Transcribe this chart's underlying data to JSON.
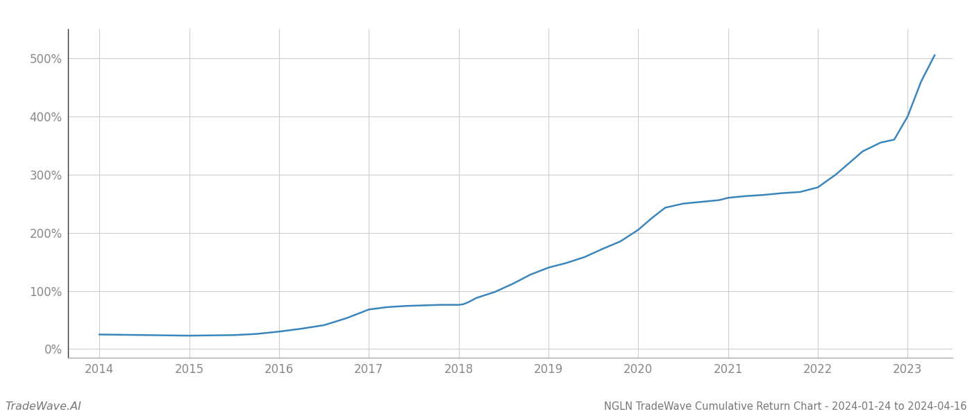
{
  "title": "NGLN TradeWave Cumulative Return Chart - 2024-01-24 to 2024-04-16",
  "watermark": "TradeWave.AI",
  "line_color": "#3a86bc",
  "background_color": "#ffffff",
  "grid_color": "#cccccc",
  "x_values": [
    2014.0,
    2014.25,
    2014.5,
    2014.75,
    2015.0,
    2015.25,
    2015.5,
    2015.75,
    2016.0,
    2016.25,
    2016.5,
    2016.75,
    2017.0,
    2017.1,
    2017.2,
    2017.4,
    2017.6,
    2017.8,
    2017.9,
    2018.0,
    2018.05,
    2018.1,
    2018.2,
    2018.4,
    2018.6,
    2018.8,
    2019.0,
    2019.2,
    2019.4,
    2019.6,
    2019.8,
    2020.0,
    2020.15,
    2020.3,
    2020.5,
    2020.7,
    2020.9,
    2021.0,
    2021.2,
    2021.4,
    2021.6,
    2021.8,
    2022.0,
    2022.2,
    2022.5,
    2022.7,
    2022.85,
    2023.0,
    2023.15,
    2023.3
  ],
  "y_values": [
    25,
    24.5,
    24,
    23.5,
    23,
    23.5,
    24,
    26,
    30,
    35,
    41,
    53,
    68,
    70,
    72,
    74,
    75,
    76,
    76,
    76,
    77,
    80,
    88,
    98,
    112,
    128,
    140,
    148,
    158,
    172,
    185,
    205,
    225,
    243,
    250,
    253,
    256,
    260,
    263,
    265,
    268,
    270,
    278,
    300,
    340,
    355,
    360,
    400,
    460,
    505
  ],
  "xlim": [
    2013.65,
    2023.5
  ],
  "ylim": [
    -15,
    550
  ],
  "yticks": [
    0,
    100,
    200,
    300,
    400,
    500
  ],
  "xticks": [
    2014,
    2015,
    2016,
    2017,
    2018,
    2019,
    2020,
    2021,
    2022,
    2023
  ],
  "line_width": 1.8,
  "title_fontsize": 10.5,
  "tick_fontsize": 12,
  "watermark_fontsize": 11.5
}
